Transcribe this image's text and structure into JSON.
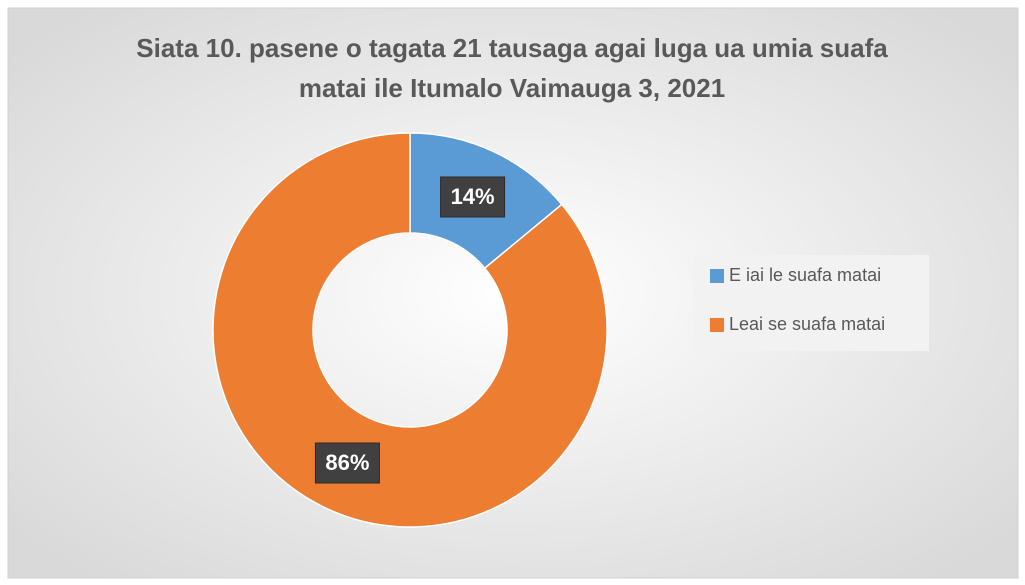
{
  "chart_data": {
    "type": "donut",
    "title": [
      "Siata 10. pasene o tagata 21 tausaga agai luga ua umia suafa",
      "matai ile Itumalo Vaimauga 3, 2021"
    ],
    "categories": [
      "E iai le suafa matai",
      "Leai se suafa matai"
    ],
    "values": [
      14,
      86
    ],
    "value_labels": [
      "14%",
      "86%"
    ],
    "colors": [
      "#5b9bd5",
      "#ed7d31"
    ],
    "legend": "right"
  }
}
